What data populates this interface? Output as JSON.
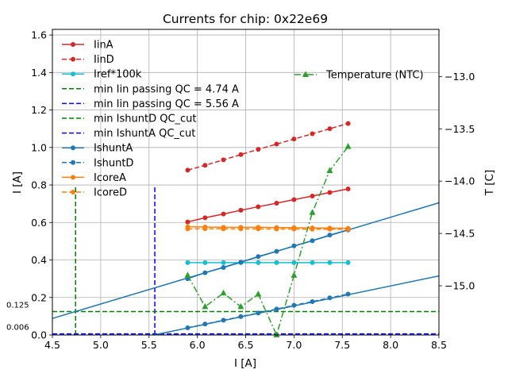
{
  "chart_data": {
    "type": "line",
    "title": "Currents for chip: 0x22e69",
    "xlabel": "I [A]",
    "ylabel": "I [A]",
    "y2label": "T [C]",
    "xlim": [
      4.5,
      8.5
    ],
    "ylim": [
      0.0,
      1.63
    ],
    "y2lim": [
      -15.47,
      -12.55
    ],
    "grid": true,
    "xticks": [
      4.5,
      5.0,
      5.5,
      6.0,
      6.5,
      7.0,
      7.5,
      8.0,
      8.5
    ],
    "xtick_labels": [
      "4.5",
      "5.0",
      "5.5",
      "6.0",
      "6.5",
      "7.0",
      "7.5",
      "8.0",
      "8.5"
    ],
    "yticks": [
      0.0,
      0.2,
      0.4,
      0.6,
      0.8,
      1.0,
      1.2,
      1.4,
      1.6
    ],
    "ytick_labels": [
      "0.0",
      "0.2",
      "0.4",
      "0.6",
      "0.8",
      "1.0",
      "1.2",
      "1.4",
      "1.6"
    ],
    "y2ticks": [
      -15.0,
      -14.5,
      -14.0,
      -13.5,
      -13.0
    ],
    "y2tick_labels": [
      "−15.0",
      "−14.5",
      "−14.0",
      "−13.5",
      "−13.0"
    ],
    "x": [
      5.9,
      6.08,
      6.27,
      6.45,
      6.63,
      6.82,
      7.0,
      7.19,
      7.37,
      7.56
    ],
    "series": [
      {
        "name": "IinA",
        "color": "#d62728",
        "style": "solid",
        "marker": "circle",
        "values": [
          0.603,
          0.625,
          0.645,
          0.665,
          0.684,
          0.703,
          0.722,
          0.741,
          0.76,
          0.779
        ]
      },
      {
        "name": "IinD",
        "color": "#d62728",
        "style": "dashed",
        "marker": "circle",
        "values": [
          0.879,
          0.905,
          0.934,
          0.962,
          0.99,
          1.018,
          1.045,
          1.073,
          1.1,
          1.128
        ]
      },
      {
        "name": "Iref*100k",
        "color": "#17becf",
        "style": "solid",
        "marker": "circle",
        "values": [
          0.386,
          0.386,
          0.386,
          0.386,
          0.386,
          0.386,
          0.386,
          0.386,
          0.386,
          0.386
        ]
      },
      {
        "name": "IshuntA",
        "color": "#1f77b4",
        "style": "solid",
        "marker": "circle",
        "values": [
          0.3,
          0.332,
          0.36,
          0.388,
          0.418,
          0.446,
          0.475,
          0.503,
          0.533,
          0.56
        ]
      },
      {
        "name": "IshuntD",
        "color": "#1f77b4",
        "style": "dashed",
        "marker": "circle",
        "values": [
          0.038,
          0.058,
          0.079,
          0.098,
          0.117,
          0.138,
          0.158,
          0.178,
          0.198,
          0.218
        ]
      },
      {
        "name": "IcoreA",
        "color": "#ff7f0e",
        "style": "solid",
        "marker": "circle",
        "values": [
          0.577,
          0.576,
          0.574,
          0.574,
          0.574,
          0.573,
          0.572,
          0.571,
          0.57,
          0.569
        ]
      },
      {
        "name": "IcoreD",
        "color": "#ff7f0e",
        "style": "dashed",
        "marker": "circle",
        "values": [
          0.566,
          0.567,
          0.566,
          0.566,
          0.566,
          0.565,
          0.565,
          0.564,
          0.564,
          0.563
        ]
      }
    ],
    "temperature": {
      "name": "Temperature (NTC)",
      "color": "#2ca02c",
      "style": "dashdot",
      "marker": "triangle",
      "axis": "right",
      "values": [
        -14.9,
        -15.2,
        -15.07,
        -15.2,
        -15.08,
        -15.47,
        -14.9,
        -14.3,
        -13.9,
        -13.67
      ]
    },
    "fit_lines": [
      {
        "name": "IshuntA fit",
        "color": "#1f77b4",
        "points": [
          [
            4.5,
            0.088
          ],
          [
            8.5,
            0.705
          ]
        ]
      },
      {
        "name": "IshuntD fit",
        "color": "#1f77b4",
        "points": [
          [
            5.55,
            0.0
          ],
          [
            8.5,
            0.315
          ]
        ]
      }
    ],
    "reference_lines": [
      {
        "name": "min Iin passing QC = 4.74 A",
        "color": "#008000",
        "orientation": "vertical",
        "value": 4.74,
        "ymax": 0.8
      },
      {
        "name": "min Iin passing QC = 5.56 A",
        "color": "#0000ff",
        "orientation": "vertical",
        "value": 5.56,
        "ymax": 0.8
      },
      {
        "name": "min IshuntD QC_cut",
        "color": "#008000",
        "orientation": "horizontal",
        "value": 0.125,
        "label": "0.125"
      },
      {
        "name": "min IshuntA QC_cut",
        "color": "#0000ff",
        "orientation": "horizontal",
        "value": 0.006,
        "label": "0.006"
      }
    ],
    "legend": {
      "placement": "upper-left",
      "entries": [
        {
          "label": "IinA",
          "color": "#d62728",
          "style": "solid",
          "marker": "circle"
        },
        {
          "label": "IinD",
          "color": "#d62728",
          "style": "dashed",
          "marker": "circle"
        },
        {
          "label": "Iref*100k",
          "color": "#17becf",
          "style": "solid",
          "marker": "circle"
        },
        {
          "label": "min Iin passing QC = 4.74 A",
          "color": "#008000",
          "style": "dashed",
          "marker": "none"
        },
        {
          "label": "min Iin passing QC = 5.56 A",
          "color": "#0000ff",
          "style": "dashed",
          "marker": "none"
        },
        {
          "label": "min IshuntD QC_cut",
          "color": "#008000",
          "style": "dashed",
          "marker": "none"
        },
        {
          "label": "min IshuntA QC_cut",
          "color": "#0000ff",
          "style": "dashed",
          "marker": "none"
        },
        {
          "label": "IshuntA",
          "color": "#1f77b4",
          "style": "solid",
          "marker": "circle"
        },
        {
          "label": "IshuntD",
          "color": "#1f77b4",
          "style": "dashed",
          "marker": "circle"
        },
        {
          "label": "IcoreA",
          "color": "#ff7f0e",
          "style": "solid",
          "marker": "circle"
        },
        {
          "label": "IcoreD",
          "color": "#ff7f0e",
          "style": "dashed",
          "marker": "circle"
        }
      ]
    },
    "legend2": {
      "placement": "upper-right",
      "entries": [
        {
          "label": "Temperature (NTC)",
          "color": "#2ca02c",
          "style": "dashdot",
          "marker": "triangle"
        }
      ]
    }
  }
}
